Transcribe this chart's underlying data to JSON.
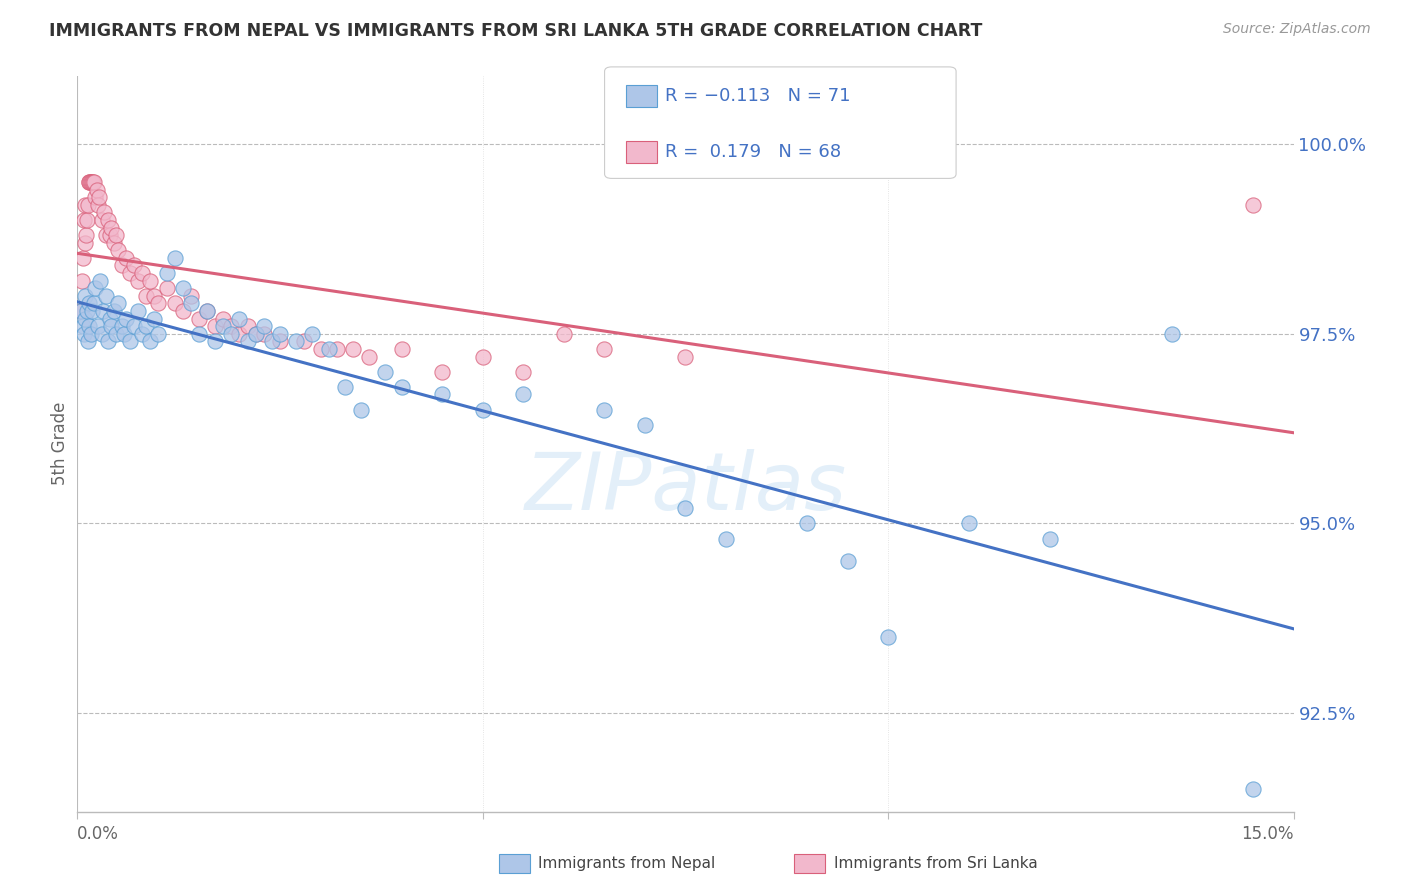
{
  "title": "IMMIGRANTS FROM NEPAL VS IMMIGRANTS FROM SRI LANKA 5TH GRADE CORRELATION CHART",
  "source": "Source: ZipAtlas.com",
  "ylabel": "5th Grade",
  "yticks": [
    92.5,
    95.0,
    97.5,
    100.0
  ],
  "ytick_labels": [
    "92.5%",
    "95.0%",
    "97.5%",
    "100.0%"
  ],
  "xmin": 0.0,
  "xmax": 15.0,
  "ymin": 91.2,
  "ymax": 100.9,
  "watermark": "ZIPatlas",
  "nepal_color": "#aec6e8",
  "nepal_edge": "#5a9fd4",
  "srilanka_color": "#f2b8cc",
  "srilanka_edge": "#d9607a",
  "nepal_line_color": "#4472c4",
  "srilanka_line_color": "#d9607a",
  "nepal_x": [
    0.05,
    0.07,
    0.08,
    0.09,
    0.1,
    0.12,
    0.13,
    0.14,
    0.15,
    0.17,
    0.18,
    0.2,
    0.22,
    0.25,
    0.28,
    0.3,
    0.32,
    0.35,
    0.38,
    0.4,
    0.42,
    0.45,
    0.48,
    0.5,
    0.55,
    0.58,
    0.6,
    0.65,
    0.7,
    0.75,
    0.8,
    0.85,
    0.9,
    0.95,
    1.0,
    1.1,
    1.2,
    1.3,
    1.4,
    1.5,
    1.6,
    1.7,
    1.8,
    1.9,
    2.0,
    2.1,
    2.2,
    2.3,
    2.4,
    2.5,
    2.7,
    2.9,
    3.1,
    3.3,
    3.5,
    3.8,
    4.0,
    4.5,
    5.0,
    5.5,
    6.5,
    7.0,
    7.5,
    8.0,
    9.0,
    9.5,
    10.0,
    11.0,
    12.0,
    13.5,
    14.5
  ],
  "nepal_y": [
    97.8,
    97.6,
    97.5,
    98.0,
    97.7,
    97.8,
    97.4,
    97.6,
    97.9,
    97.5,
    97.8,
    97.9,
    98.1,
    97.6,
    98.2,
    97.5,
    97.8,
    98.0,
    97.4,
    97.7,
    97.6,
    97.8,
    97.5,
    97.9,
    97.6,
    97.5,
    97.7,
    97.4,
    97.6,
    97.8,
    97.5,
    97.6,
    97.4,
    97.7,
    97.5,
    98.3,
    98.5,
    98.1,
    97.9,
    97.5,
    97.8,
    97.4,
    97.6,
    97.5,
    97.7,
    97.4,
    97.5,
    97.6,
    97.4,
    97.5,
    97.4,
    97.5,
    97.3,
    96.8,
    96.5,
    97.0,
    96.8,
    96.7,
    96.5,
    96.7,
    96.5,
    96.3,
    95.2,
    94.8,
    95.0,
    94.5,
    93.5,
    95.0,
    94.8,
    97.5,
    91.5
  ],
  "srilanka_x": [
    0.04,
    0.06,
    0.07,
    0.08,
    0.09,
    0.1,
    0.11,
    0.12,
    0.13,
    0.14,
    0.15,
    0.16,
    0.17,
    0.18,
    0.19,
    0.2,
    0.22,
    0.24,
    0.25,
    0.27,
    0.3,
    0.33,
    0.35,
    0.38,
    0.4,
    0.42,
    0.45,
    0.48,
    0.5,
    0.55,
    0.6,
    0.65,
    0.7,
    0.75,
    0.8,
    0.85,
    0.9,
    0.95,
    1.0,
    1.1,
    1.2,
    1.3,
    1.4,
    1.5,
    1.6,
    1.7,
    1.8,
    1.9,
    2.0,
    2.1,
    2.2,
    2.3,
    2.5,
    2.8,
    3.0,
    3.2,
    3.4,
    3.6,
    4.0,
    4.5,
    5.0,
    5.5,
    6.0,
    6.5,
    7.5,
    14.5
  ],
  "srilanka_y": [
    97.8,
    98.2,
    98.5,
    99.0,
    98.7,
    99.2,
    98.8,
    99.0,
    99.2,
    99.5,
    99.5,
    99.5,
    99.5,
    99.5,
    99.5,
    99.5,
    99.3,
    99.4,
    99.2,
    99.3,
    99.0,
    99.1,
    98.8,
    99.0,
    98.8,
    98.9,
    98.7,
    98.8,
    98.6,
    98.4,
    98.5,
    98.3,
    98.4,
    98.2,
    98.3,
    98.0,
    98.2,
    98.0,
    97.9,
    98.1,
    97.9,
    97.8,
    98.0,
    97.7,
    97.8,
    97.6,
    97.7,
    97.6,
    97.5,
    97.6,
    97.5,
    97.5,
    97.4,
    97.4,
    97.3,
    97.3,
    97.3,
    97.2,
    97.3,
    97.0,
    97.2,
    97.0,
    97.5,
    97.3,
    97.2,
    99.2
  ]
}
